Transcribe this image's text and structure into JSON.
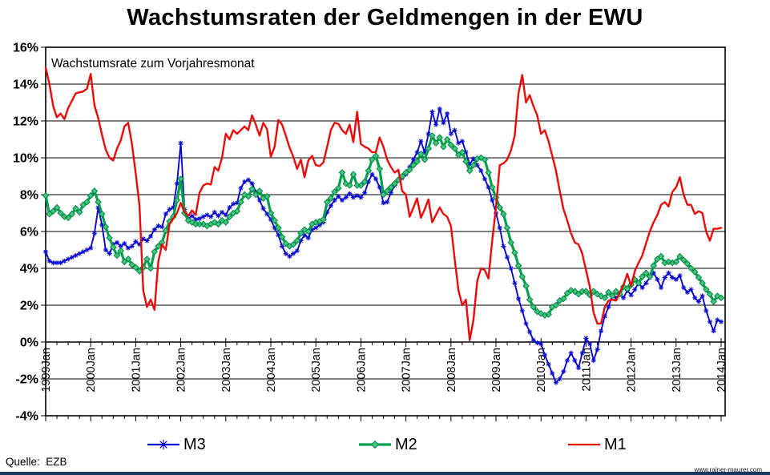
{
  "title": "Wachstumsraten der Geldmengen in der EWU",
  "annotation": "Wachstumsrate zum Vorjahresmonat",
  "source": "Quelle:  EZB",
  "watermark": "www.rainer-maurer.com",
  "colors": {
    "background": "#FFFFFF",
    "axis": "#000000",
    "m3_blue": "#0B0BD0",
    "m2_green": "#00A04D",
    "m2_marker_fill": "#45C380",
    "m2_marker_stroke": "#008A43",
    "m1_red": "#E90A0A",
    "bottom_bar": "#17365D"
  },
  "chart_data": {
    "type": "line",
    "title": "Wachstumsraten der Geldmengen in der EWU",
    "subtitle": "Wachstumsrate zum Vorjahresmonat",
    "x_start": "1999-01",
    "x_end": "2014-01",
    "frequency": "monthly",
    "xlabel": "",
    "ylabel": "",
    "ylim": [
      -4,
      16
    ],
    "y_tick_step": 2,
    "y_tick_labels": [
      "16%",
      "14%",
      "12%",
      "10%",
      "8%",
      "6%",
      "4%",
      "2%",
      "0%",
      "-2%",
      "-4%"
    ],
    "x_tick_labels": [
      "1999Jan",
      "2000Jan",
      "2001Jan",
      "2002Jan",
      "2003Jan",
      "2004Jan",
      "2005Jan",
      "2006Jan",
      "2007Jan",
      "2008Jan",
      "2009Jan",
      "2010Jan",
      "2011Jan",
      "2012Jan",
      "2013Jan",
      "2014Jan"
    ],
    "grid": "horizontal-major",
    "x_axis_position": "at-zero",
    "legend_position": "bottom",
    "series": [
      {
        "name": "M3",
        "color": "#0B0BD0",
        "marker": "star",
        "values": [
          4.9,
          4.4,
          4.3,
          4.3,
          4.3,
          4.4,
          4.5,
          4.6,
          4.7,
          4.8,
          4.9,
          5.0,
          5.1,
          5.9,
          7.3,
          6.35,
          5.0,
          4.8,
          5.3,
          5.4,
          5.2,
          5.35,
          5.1,
          5.2,
          5.45,
          5.3,
          5.6,
          5.5,
          5.75,
          6.1,
          6.3,
          6.25,
          6.95,
          7.2,
          7.3,
          8.6,
          10.8,
          7.2,
          6.7,
          6.85,
          6.65,
          6.7,
          6.8,
          6.9,
          6.8,
          7.05,
          6.85,
          7.05,
          6.9,
          7.3,
          7.5,
          7.55,
          8.35,
          8.7,
          8.8,
          8.6,
          8.15,
          7.7,
          7.25,
          6.95,
          6.65,
          6.2,
          5.8,
          5.2,
          4.8,
          4.65,
          4.8,
          4.95,
          5.5,
          5.8,
          5.65,
          6.1,
          6.2,
          6.35,
          6.5,
          7.05,
          7.4,
          7.7,
          7.9,
          7.7,
          7.85,
          8.05,
          7.85,
          7.95,
          7.85,
          8.1,
          8.7,
          9.1,
          8.85,
          8.4,
          7.55,
          7.6,
          8.1,
          8.5,
          8.8,
          8.9,
          9.1,
          9.5,
          9.9,
          10.3,
          10.9,
          10.3,
          11.3,
          12.5,
          11.8,
          12.65,
          11.9,
          12.4,
          11.3,
          11.5,
          10.8,
          10.9,
          10.3,
          9.65,
          9.95,
          9.6,
          9.3,
          8.85,
          8.4,
          7.7,
          7.0,
          6.2,
          5.2,
          4.6,
          4.0,
          3.2,
          2.35,
          1.7,
          1.0,
          0.55,
          0.1,
          -0.05,
          -0.1,
          -0.7,
          -1.2,
          -1.7,
          -2.2,
          -2.0,
          -1.6,
          -1.0,
          -0.6,
          -1.0,
          -1.4,
          -0.6,
          0.2,
          -0.1,
          -1.0,
          -0.4,
          0.6,
          1.4,
          1.9,
          2.55,
          2.4,
          2.6,
          2.4,
          2.8,
          2.55,
          2.85,
          3.2,
          2.95,
          3.2,
          3.5,
          3.75,
          3.4,
          2.95,
          3.5,
          3.75,
          3.5,
          3.4,
          3.6,
          2.95,
          2.7,
          2.85,
          2.4,
          2.2,
          2.5,
          1.7,
          1.1,
          0.6,
          1.2,
          1.1
        ]
      },
      {
        "name": "M2",
        "color": "#00A04D",
        "marker": "diamond",
        "values": [
          7.95,
          6.95,
          7.1,
          7.3,
          7.0,
          6.8,
          6.75,
          6.95,
          7.25,
          7.05,
          7.45,
          7.6,
          7.95,
          8.2,
          7.6,
          6.95,
          6.25,
          5.65,
          5.15,
          4.7,
          4.95,
          4.35,
          4.5,
          4.2,
          4.05,
          3.85,
          4.05,
          4.5,
          4.0,
          4.9,
          5.2,
          5.4,
          6.05,
          6.55,
          6.8,
          7.7,
          8.85,
          7.0,
          6.6,
          6.5,
          6.4,
          6.4,
          6.4,
          6.3,
          6.4,
          6.5,
          6.4,
          6.6,
          6.5,
          6.8,
          7.0,
          7.1,
          7.6,
          8.0,
          7.9,
          8.3,
          8.0,
          8.2,
          7.8,
          7.9,
          7.0,
          6.6,
          6.2,
          5.7,
          5.35,
          5.2,
          5.3,
          5.5,
          5.9,
          6.1,
          6.0,
          6.4,
          6.5,
          6.55,
          6.65,
          7.6,
          7.8,
          8.15,
          8.35,
          9.2,
          8.6,
          8.5,
          9.1,
          8.5,
          8.5,
          8.7,
          9.3,
          9.9,
          10.1,
          9.4,
          8.0,
          8.2,
          8.4,
          8.6,
          8.8,
          9.0,
          9.2,
          9.35,
          9.6,
          9.8,
          10.2,
          9.9,
          10.5,
          11.2,
          10.8,
          11.1,
          10.6,
          11.0,
          10.7,
          10.5,
          10.15,
          10.3,
          9.8,
          9.3,
          9.6,
          9.95,
          10.0,
          9.9,
          9.2,
          8.4,
          7.85,
          7.3,
          6.95,
          6.2,
          5.4,
          4.85,
          4.15,
          3.55,
          3.05,
          2.3,
          1.9,
          1.65,
          1.55,
          1.45,
          1.5,
          1.9,
          2.0,
          2.25,
          2.35,
          2.65,
          2.8,
          2.75,
          2.6,
          2.75,
          2.75,
          2.55,
          2.75,
          2.6,
          2.5,
          2.4,
          2.7,
          2.5,
          2.75,
          2.6,
          3.0,
          2.9,
          3.1,
          3.4,
          3.2,
          3.55,
          3.75,
          3.55,
          4.15,
          4.5,
          4.65,
          4.3,
          4.35,
          4.3,
          4.35,
          4.65,
          4.45,
          4.25,
          4.0,
          3.8,
          3.5,
          3.2,
          2.85,
          2.6,
          2.2,
          2.5,
          2.4
        ]
      },
      {
        "name": "M1",
        "color": "#E90A0A",
        "marker": "none",
        "values": [
          14.9,
          14.0,
          12.8,
          12.2,
          12.4,
          12.1,
          12.7,
          13.1,
          13.5,
          13.55,
          13.6,
          13.75,
          14.55,
          12.85,
          12.15,
          11.25,
          10.45,
          10.0,
          9.85,
          10.5,
          10.95,
          11.7,
          11.9,
          10.75,
          9.15,
          7.4,
          2.8,
          1.9,
          2.3,
          1.75,
          4.35,
          5.3,
          5.0,
          6.4,
          6.7,
          7.0,
          7.55,
          7.05,
          6.85,
          7.15,
          6.9,
          8.1,
          8.5,
          8.6,
          8.55,
          9.5,
          9.3,
          10.0,
          11.3,
          11.0,
          11.5,
          11.3,
          11.5,
          11.7,
          11.5,
          12.3,
          11.8,
          11.2,
          11.9,
          11.55,
          10.05,
          10.6,
          12.05,
          11.8,
          11.2,
          10.55,
          10.05,
          9.4,
          9.9,
          8.95,
          9.85,
          10.1,
          9.6,
          9.55,
          9.75,
          10.6,
          11.5,
          11.9,
          11.85,
          11.5,
          11.3,
          11.8,
          10.85,
          12.5,
          10.75,
          10.6,
          10.5,
          10.3,
          10.3,
          11.1,
          10.6,
          9.9,
          9.5,
          9.2,
          9.35,
          8.2,
          8.0,
          6.8,
          7.3,
          7.8,
          6.75,
          7.2,
          7.75,
          6.5,
          6.9,
          7.3,
          6.95,
          6.8,
          6.3,
          4.5,
          2.8,
          2.0,
          2.3,
          0.1,
          1.2,
          3.3,
          4.0,
          3.9,
          3.45,
          5.5,
          7.3,
          9.6,
          9.7,
          9.9,
          10.4,
          11.2,
          13.5,
          14.5,
          13.0,
          13.4,
          12.8,
          12.3,
          11.3,
          11.5,
          10.9,
          10.1,
          9.3,
          8.2,
          7.2,
          6.6,
          5.9,
          5.4,
          5.3,
          4.8,
          3.9,
          3.0,
          1.6,
          1.0,
          1.0,
          1.9,
          2.25,
          2.3,
          2.25,
          2.7,
          3.1,
          3.7,
          3.05,
          3.85,
          4.3,
          4.7,
          5.35,
          6.0,
          6.5,
          6.9,
          7.45,
          7.6,
          7.35,
          8.15,
          8.4,
          8.95,
          8.0,
          7.45,
          7.45,
          6.95,
          7.1,
          7.0,
          6.0,
          5.5,
          6.15,
          6.15,
          6.2
        ]
      }
    ]
  }
}
